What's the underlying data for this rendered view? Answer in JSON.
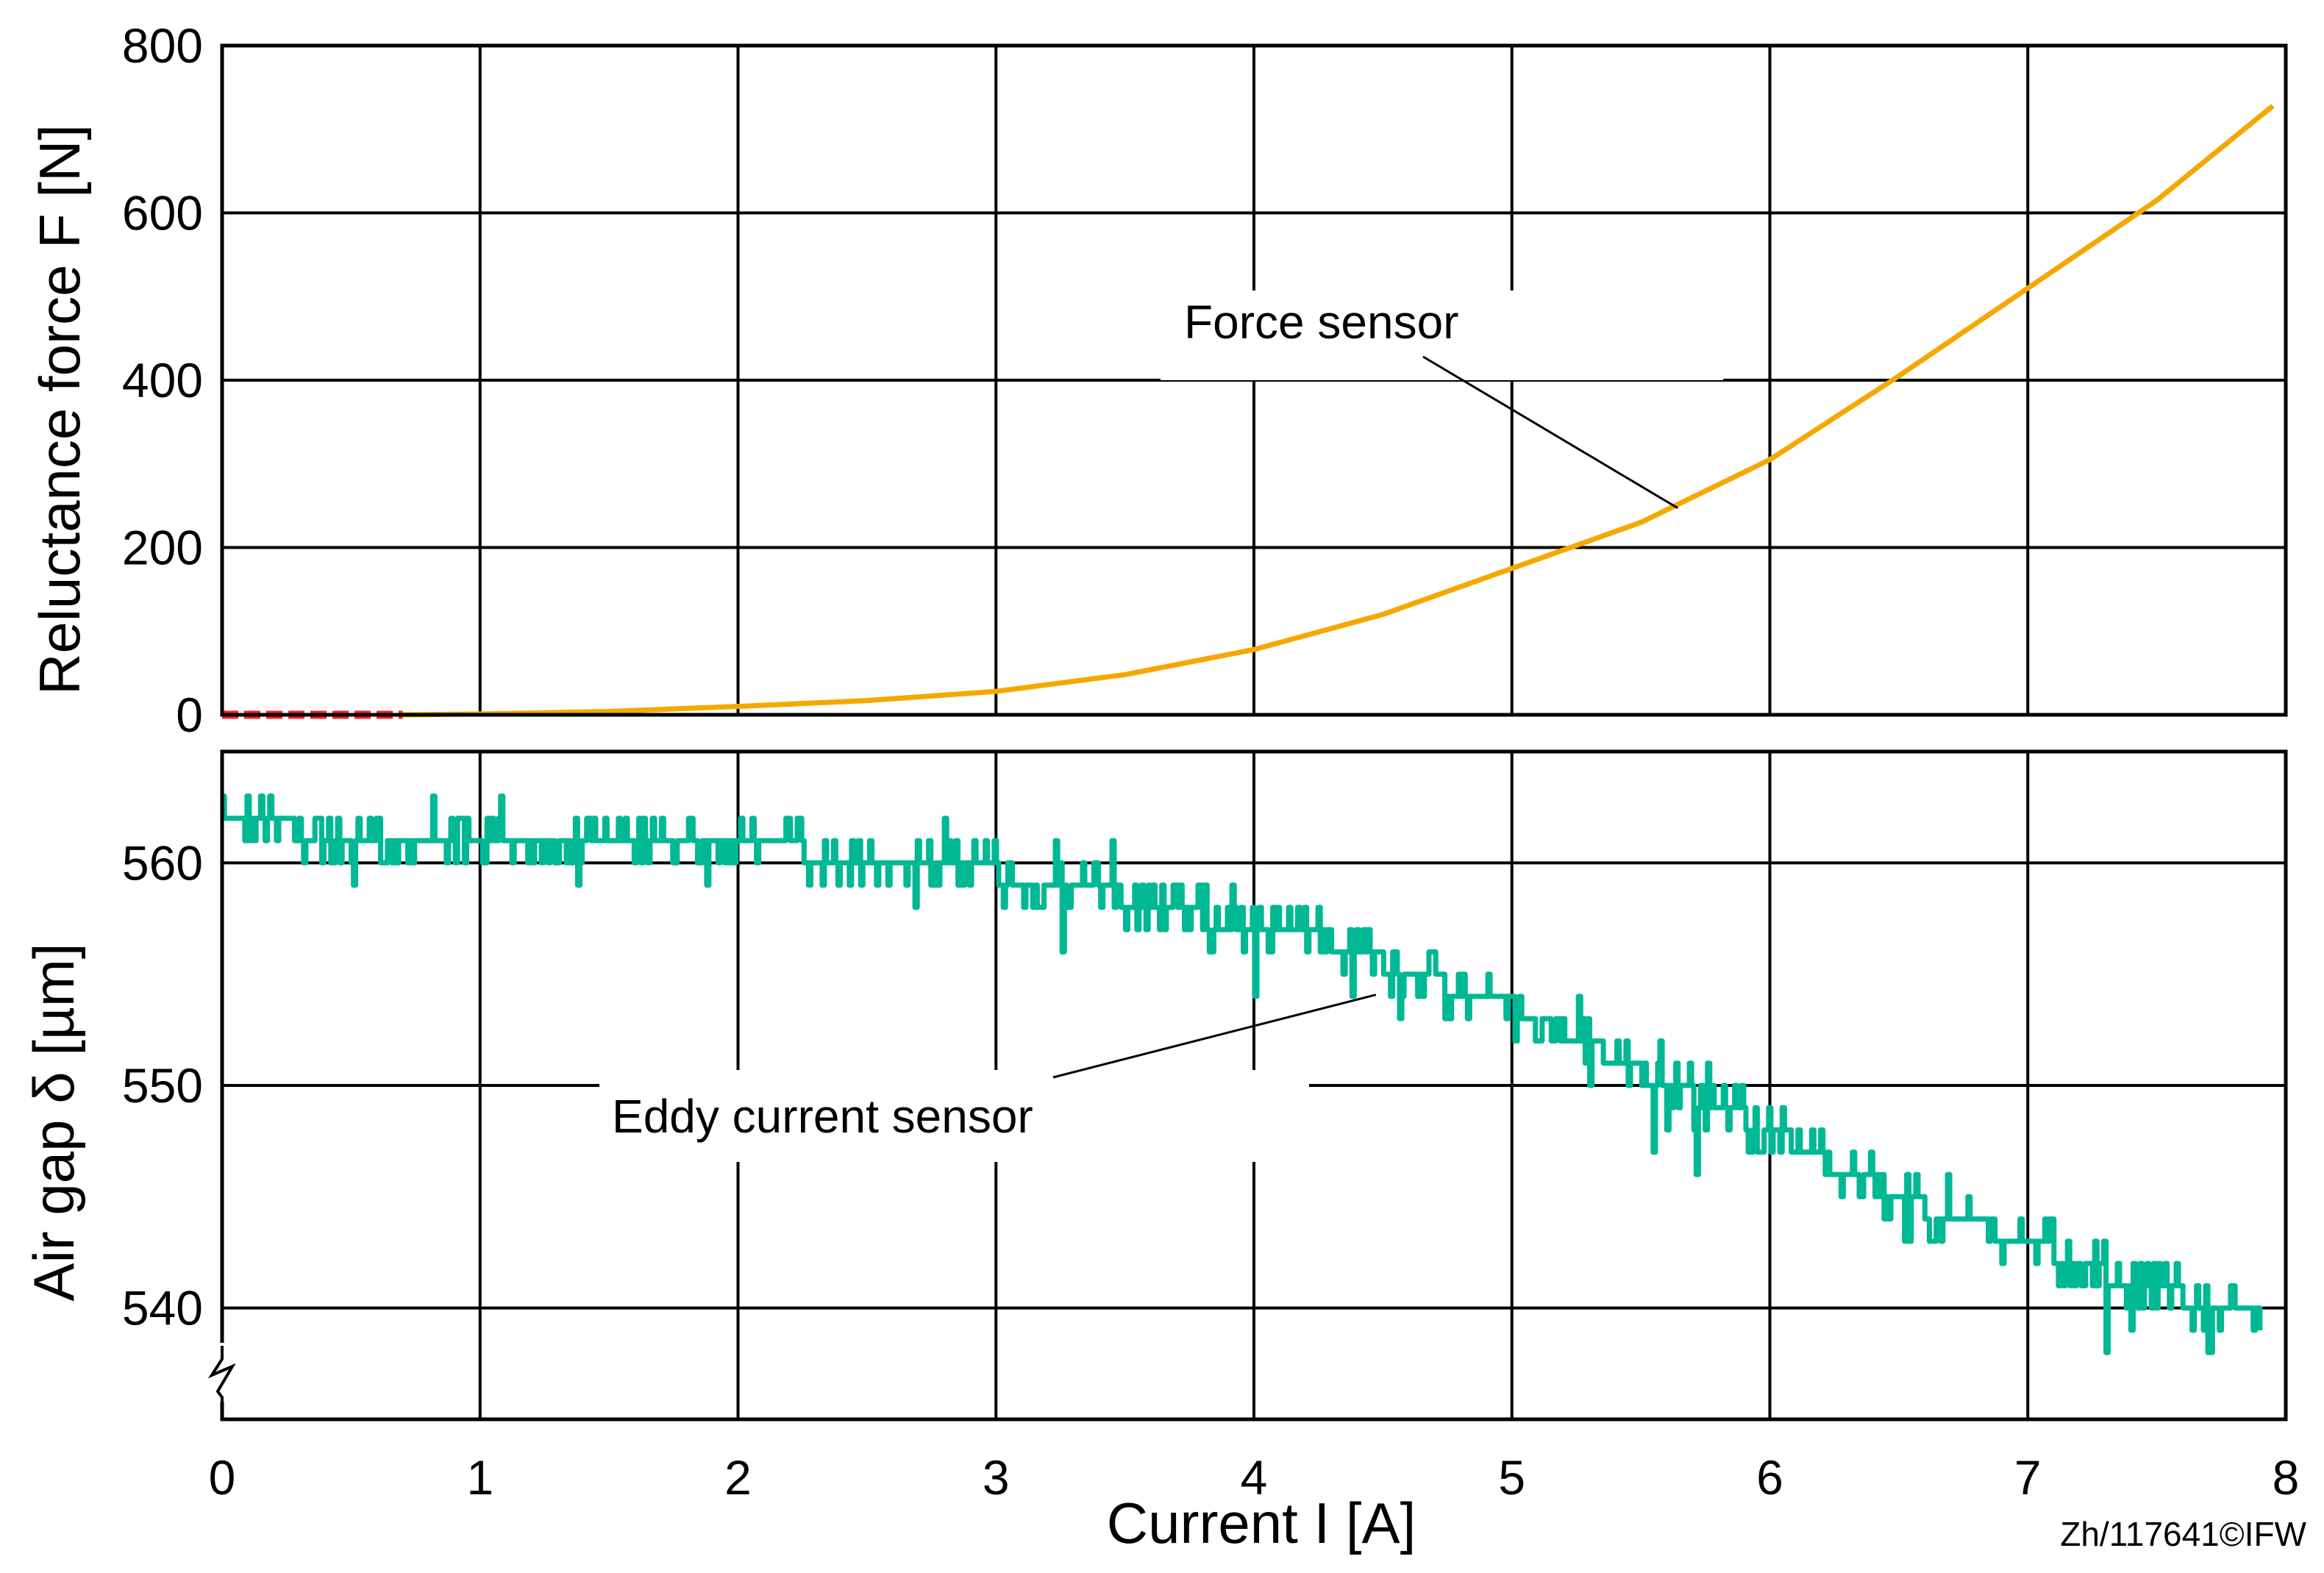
{
  "chart_data": [
    {
      "type": "line",
      "ylabel": "Reluctance force F [N]",
      "xlim": [
        0,
        8
      ],
      "ylim": [
        0,
        800
      ],
      "xticks": [
        "0",
        "1",
        "2",
        "3",
        "4",
        "5",
        "6",
        "7",
        "8"
      ],
      "yticks": [
        "0",
        "200",
        "400",
        "600",
        "800"
      ],
      "grid": true,
      "series": [
        {
          "color": "#f5a800",
          "x": [
            0.7,
            1,
            1.5,
            2,
            2.5,
            3,
            3.5,
            4,
            4.5,
            5,
            5.5,
            6,
            6.5,
            7,
            7.5,
            7.95
          ],
          "y": [
            0,
            1,
            4,
            10,
            17,
            28,
            48,
            78,
            120,
            175,
            230,
            305,
            405,
            510,
            615,
            728
          ]
        },
        {
          "color": "#ff2020",
          "x": [
            0,
            0.1,
            0.2,
            0.3,
            0.4,
            0.5,
            0.6,
            0.7
          ],
          "y": [
            0,
            0,
            0,
            0,
            0,
            0,
            0,
            0
          ]
        }
      ],
      "annotations": [
        {
          "text": "Force sensor",
          "x": 5.6,
          "y": 263
        }
      ]
    },
    {
      "type": "line",
      "ylabel": "Air gap δ [µm]",
      "xlabel": "Current I [A]",
      "xlim": [
        0,
        8
      ],
      "ylim": [
        535,
        565
      ],
      "xticks": [
        "0",
        "1",
        "2",
        "3",
        "4",
        "5",
        "6",
        "7",
        "8"
      ],
      "yticks": [
        "540",
        "550",
        "560"
      ],
      "grid": true,
      "axis_break": true,
      "series": [
        {
          "color": "#00b894",
          "x": [
            0,
            0.3,
            0.6,
            1,
            1.5,
            2,
            2.5,
            3,
            3.3,
            3.6,
            4,
            4.3,
            4.6,
            5,
            5.3,
            5.6,
            6,
            6.3,
            6.6,
            7,
            7.3,
            7.6,
            7.9
          ],
          "y": [
            561.5,
            561.5,
            561,
            561,
            561,
            561,
            560,
            559.5,
            559,
            558,
            557,
            556.5,
            555,
            553.5,
            552,
            550,
            548,
            546,
            544.5,
            543,
            541.5,
            540.5,
            539.5
          ]
        }
      ],
      "annotations": [
        {
          "text": "Eddy current sensor",
          "x": 4.45,
          "y": 555
        }
      ]
    }
  ],
  "credit": "Zh/117641©IFW"
}
